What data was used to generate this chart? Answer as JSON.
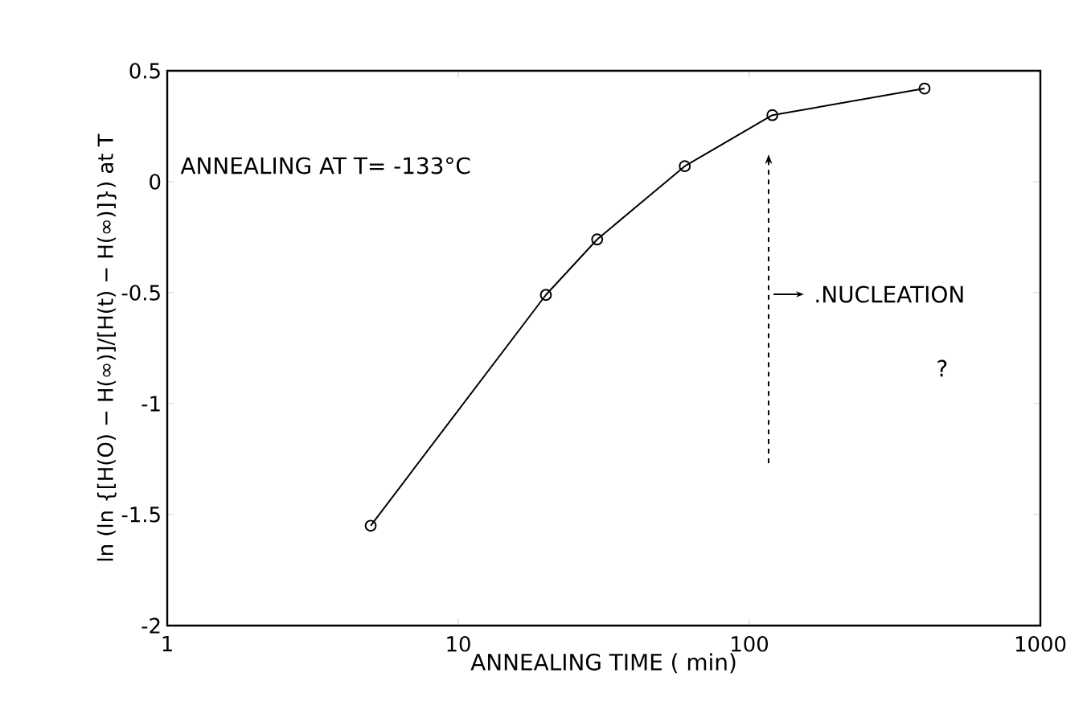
{
  "chart_data": {
    "type": "line",
    "xlabel": "ANNEALING TIME ( min)",
    "ylabel": "ln (ln {[H(O) − H(∞)]/[H(t) − H(∞)]}) at T",
    "log": "x",
    "x": [
      5,
      20,
      30,
      60,
      120,
      400
    ],
    "values": [
      -1.55,
      -0.51,
      -0.26,
      0.07,
      0.3,
      0.42
    ],
    "color": "#000000",
    "marker": "circle",
    "line_style": "solid",
    "grid": false,
    "xlim": [
      1,
      1000
    ],
    "xticks": [
      1,
      10,
      100,
      1000
    ],
    "ylim": [
      -2,
      0.5
    ],
    "yticks": [
      0.5,
      0,
      -0.5,
      -1,
      -1.5,
      -2
    ],
    "annotations": [
      "ANNEALING AT T= -133°C",
      ".NUCLEATION",
      "?"
    ]
  }
}
